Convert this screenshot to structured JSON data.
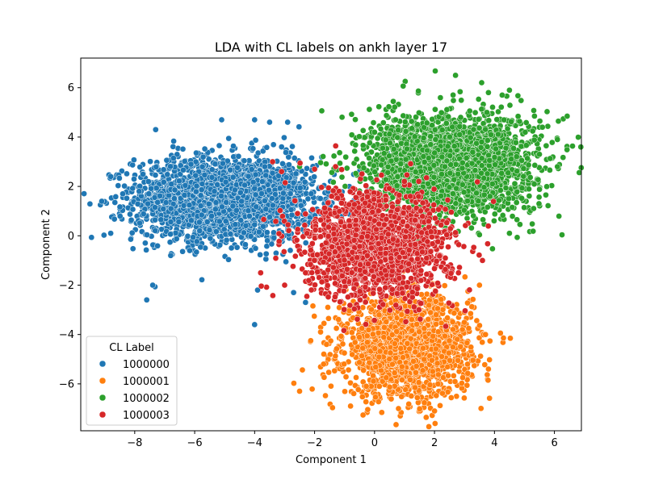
{
  "chart_data": {
    "type": "scatter",
    "title": "LDA with CL labels on ankh layer 17",
    "xlabel": "Component 1",
    "ylabel": "Component 2",
    "xlim": [
      -9.8,
      6.9
    ],
    "ylim": [
      -7.9,
      7.2
    ],
    "xticks": [
      -8,
      -6,
      -4,
      -2,
      0,
      2,
      4,
      6
    ],
    "yticks": [
      -6,
      -4,
      -2,
      0,
      2,
      4,
      6
    ],
    "grid": false,
    "legend": {
      "title": "CL Label",
      "placement": "lower-left"
    },
    "series": [
      {
        "name": "1000000",
        "color": "#1f77b4",
        "cluster": {
          "center": [
            -5.0,
            1.5
          ],
          "spread": [
            1.5,
            0.85
          ],
          "count": 2400
        },
        "outliers": [
          [
            -9.1,
            1.4
          ],
          [
            -8.8,
            2.4
          ],
          [
            -8.8,
            0.1
          ],
          [
            -7.6,
            -2.6
          ],
          [
            -7.4,
            -2.0
          ],
          [
            -7.3,
            4.3
          ],
          [
            -5.1,
            4.7
          ],
          [
            -4.0,
            4.7
          ],
          [
            -4.0,
            -3.6
          ],
          [
            -3.9,
            -2.2
          ],
          [
            -3.5,
            4.6
          ],
          [
            -2.9,
            4.6
          ],
          [
            -2.7,
            -2.3
          ],
          [
            -2.3,
            -2.7
          ],
          [
            -3.1,
            3.6
          ],
          [
            -8.4,
            1.7
          ],
          [
            -6.8,
            -0.8
          ]
        ]
      },
      {
        "name": "1000001",
        "color": "#ff7f0e",
        "cluster": {
          "center": [
            1.1,
            -4.5
          ],
          "spread": [
            1.05,
            1.0
          ],
          "count": 1900
        },
        "outliers": [
          [
            -2.5,
            -6.3
          ],
          [
            -0.8,
            -6.9
          ],
          [
            0.8,
            -7.0
          ],
          [
            2.0,
            -7.1
          ],
          [
            -1.7,
            -5.2
          ],
          [
            -1.8,
            -3.9
          ],
          [
            3.7,
            -4.0
          ],
          [
            3.8,
            -5.4
          ],
          [
            -2.2,
            -1.9
          ],
          [
            3.5,
            -2.0
          ],
          [
            -1.6,
            -4.4
          ]
        ]
      },
      {
        "name": "1000002",
        "color": "#2ca02c",
        "cluster": {
          "center": [
            2.6,
            2.9
          ],
          "spread": [
            1.35,
            1.0
          ],
          "count": 2700
        },
        "outliers": [
          [
            2.7,
            6.5
          ],
          [
            6.1,
            3.9
          ],
          [
            6.1,
            2.8
          ],
          [
            5.5,
            3.3
          ],
          [
            4.5,
            5.9
          ],
          [
            4.5,
            0.1
          ],
          [
            0.7,
            4.7
          ],
          [
            -0.6,
            3.1
          ],
          [
            -2.5,
            2.8
          ],
          [
            5.6,
            4.4
          ],
          [
            3.8,
            5.8
          ]
        ]
      },
      {
        "name": "1000003",
        "color": "#d62728",
        "cluster": {
          "center": [
            0.1,
            -0.4
          ],
          "spread": [
            1.2,
            1.05
          ],
          "count": 1700
        },
        "outliers": [
          [
            -3.4,
            3.0
          ],
          [
            -3.1,
            2.6
          ],
          [
            -2.0,
            2.7
          ],
          [
            -1.3,
            2.8
          ],
          [
            -3.0,
            -2.0
          ],
          [
            3.6,
            -1.0
          ],
          [
            2.8,
            -1.5
          ],
          [
            -3.8,
            -1.5
          ],
          [
            -2.3,
            -1.5
          ]
        ]
      }
    ]
  }
}
